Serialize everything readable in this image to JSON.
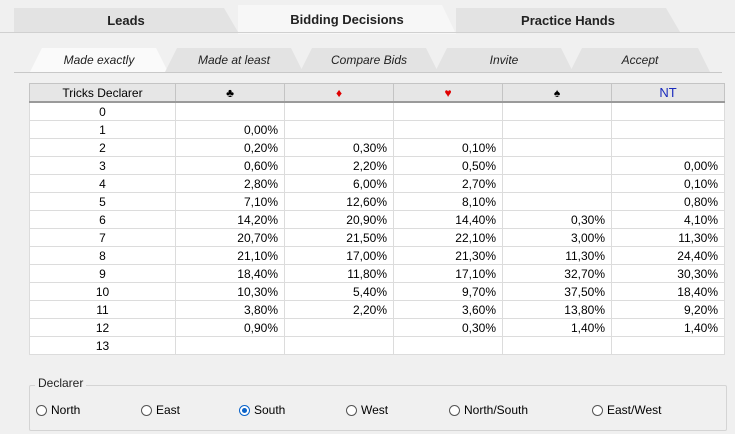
{
  "top_tabs": [
    "Leads",
    "Bidding Decisions",
    "Practice Hands"
  ],
  "sub_tabs": [
    "Made exactly",
    "Made at least",
    "Compare Bids",
    "Invite",
    "Accept"
  ],
  "table": {
    "header_first": "Tricks Declarer",
    "suits": [
      {
        "symbol": "♣",
        "color": "#000000"
      },
      {
        "symbol": "♦",
        "color": "#e00000"
      },
      {
        "symbol": "♥",
        "color": "#e00000"
      },
      {
        "symbol": "♠",
        "color": "#000000"
      },
      {
        "symbol": "NT",
        "color": "#1a2bbd"
      }
    ],
    "rows": [
      {
        "tricks": "0",
        "cells": [
          "",
          "",
          "",
          "",
          ""
        ]
      },
      {
        "tricks": "1",
        "cells": [
          "0,00%",
          "",
          "",
          "",
          ""
        ]
      },
      {
        "tricks": "2",
        "cells": [
          "0,20%",
          "0,30%",
          "0,10%",
          "",
          ""
        ]
      },
      {
        "tricks": "3",
        "cells": [
          "0,60%",
          "2,20%",
          "0,50%",
          "",
          "0,00%"
        ]
      },
      {
        "tricks": "4",
        "cells": [
          "2,80%",
          "6,00%",
          "2,70%",
          "",
          "0,10%"
        ]
      },
      {
        "tricks": "5",
        "cells": [
          "7,10%",
          "12,60%",
          "8,10%",
          "",
          "0,80%"
        ]
      },
      {
        "tricks": "6",
        "cells": [
          "14,20%",
          "20,90%",
          "14,40%",
          "0,30%",
          "4,10%"
        ]
      },
      {
        "tricks": "7",
        "cells": [
          "20,70%",
          "21,50%",
          "22,10%",
          "3,00%",
          "11,30%"
        ]
      },
      {
        "tricks": "8",
        "cells": [
          "21,10%",
          "17,00%",
          "21,30%",
          "11,30%",
          "24,40%"
        ]
      },
      {
        "tricks": "9",
        "cells": [
          "18,40%",
          "11,80%",
          "17,10%",
          "32,70%",
          "30,30%"
        ]
      },
      {
        "tricks": "10",
        "cells": [
          "10,30%",
          "5,40%",
          "9,70%",
          "37,50%",
          "18,40%"
        ]
      },
      {
        "tricks": "11",
        "cells": [
          "3,80%",
          "2,20%",
          "3,60%",
          "13,80%",
          "9,20%"
        ]
      },
      {
        "tricks": "12",
        "cells": [
          "0,90%",
          "",
          "0,30%",
          "1,40%",
          "1,40%"
        ]
      },
      {
        "tricks": "13",
        "cells": [
          "",
          "",
          "",
          "",
          ""
        ]
      }
    ]
  },
  "declarer": {
    "legend": "Declarer",
    "options": [
      "North",
      "East",
      "South",
      "West",
      "North/South",
      "East/West"
    ],
    "selected": "South"
  }
}
